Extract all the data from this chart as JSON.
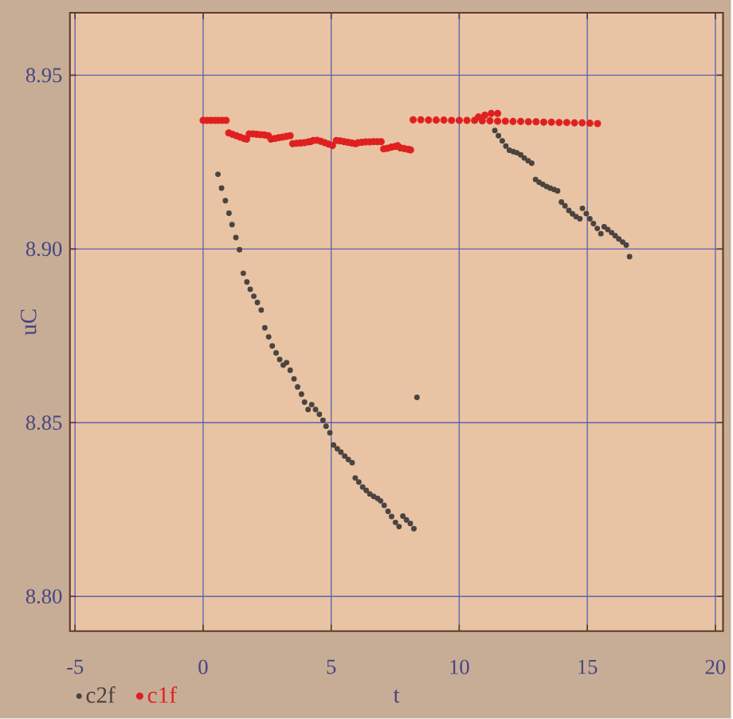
{
  "chart_data": {
    "type": "scatter",
    "xlabel": "t",
    "ylabel": "uC",
    "xlim": [
      -5.2,
      20.3
    ],
    "ylim": [
      8.79,
      8.968
    ],
    "xticks": [
      -5,
      0,
      5,
      10,
      15,
      20
    ],
    "yticks": [
      {
        "value": 8.8,
        "label": "8.80"
      },
      {
        "value": 8.85,
        "label": "8.85"
      },
      {
        "value": 8.9,
        "label": "8.90"
      },
      {
        "value": 8.95,
        "label": "8.95"
      }
    ],
    "grid": true,
    "legend": "bottom left",
    "marker": "circle",
    "series": [
      {
        "name": "c2f",
        "color": "#4a4440",
        "x": [
          0.58,
          0.72,
          0.87,
          1.01,
          1.13,
          1.28,
          1.42,
          1.57,
          1.71,
          1.84,
          1.98,
          2.12,
          2.27,
          2.41,
          2.56,
          2.7,
          2.85,
          2.99,
          3.13,
          3.26,
          3.4,
          3.55,
          3.69,
          3.84,
          3.96,
          4.1,
          4.24,
          4.39,
          4.54,
          4.68,
          4.8,
          4.95,
          5.09,
          5.24,
          5.38,
          5.53,
          5.67,
          5.82,
          5.94,
          6.08,
          6.23,
          6.37,
          6.51,
          6.66,
          6.81,
          6.93,
          7.07,
          7.22,
          7.36,
          7.51,
          7.65,
          7.8,
          7.94,
          8.09,
          8.23,
          8.35,
          11.39,
          11.53,
          11.68,
          11.82,
          11.96,
          12.11,
          12.25,
          12.4,
          12.54,
          12.69,
          12.83,
          12.98,
          13.12,
          13.26,
          13.41,
          13.55,
          13.7,
          13.84,
          13.99,
          14.13,
          14.28,
          14.42,
          14.56,
          14.71,
          14.81,
          14.96,
          15.1,
          15.24,
          15.39,
          15.53,
          15.66,
          15.8,
          15.95,
          16.09,
          16.23,
          16.38,
          16.52,
          16.65
        ],
        "values": [
          8.9215,
          8.9175,
          8.9139,
          8.9103,
          8.907,
          8.9033,
          8.8998,
          8.893,
          8.8905,
          8.8884,
          8.8864,
          8.8846,
          8.8824,
          8.8773,
          8.8747,
          8.8721,
          8.8701,
          8.8682,
          8.8666,
          8.8673,
          8.8651,
          8.8626,
          8.8603,
          8.8582,
          8.8559,
          8.8538,
          8.8552,
          8.8538,
          8.8524,
          8.8507,
          8.849,
          8.8471,
          8.8436,
          8.8425,
          8.8415,
          8.8404,
          8.8394,
          8.8385,
          8.8341,
          8.8329,
          8.8315,
          8.8305,
          8.8295,
          8.8288,
          8.8282,
          8.8275,
          8.8262,
          8.8245,
          8.823,
          8.8213,
          8.8201,
          8.8231,
          8.822,
          8.821,
          8.8195,
          8.8573,
          8.9341,
          8.9326,
          8.9311,
          8.9296,
          8.9284,
          8.928,
          8.9277,
          8.9271,
          8.9262,
          8.9254,
          8.9247,
          8.92,
          8.9192,
          8.9186,
          8.918,
          8.9175,
          8.9171,
          8.9167,
          8.9135,
          8.9124,
          8.9111,
          8.9101,
          8.9093,
          8.9087,
          8.9117,
          8.9102,
          8.9087,
          8.9073,
          8.9059,
          8.9044,
          8.9064,
          8.9056,
          8.9047,
          8.9038,
          8.9029,
          8.902,
          8.9011,
          8.8978
        ]
      },
      {
        "name": "c1f",
        "color": "#e02020",
        "x": [
          0,
          0.15,
          0.3,
          0.45,
          0.6,
          0.75,
          0.9,
          1.0,
          1.15,
          1.3,
          1.45,
          1.6,
          1.7,
          1.8,
          1.95,
          2.1,
          2.25,
          2.4,
          2.55,
          2.65,
          2.8,
          2.95,
          3.1,
          3.25,
          3.4,
          3.5,
          3.65,
          3.8,
          3.95,
          4.1,
          4.2,
          4.3,
          4.45,
          4.6,
          4.75,
          4.9,
          5.05,
          5.2,
          5.35,
          5.5,
          5.65,
          5.8,
          5.95,
          6.05,
          6.2,
          6.35,
          6.5,
          6.65,
          6.8,
          6.95,
          7.05,
          7.2,
          7.35,
          7.5,
          7.6,
          7.7,
          7.85,
          8.0,
          8.1,
          8.2,
          8.5,
          8.8,
          9.1,
          9.4,
          9.7,
          10.0,
          10.3,
          10.6,
          10.75,
          10.9,
          11.0,
          11.2,
          11.25,
          11.5,
          11.5,
          11.8,
          12.1,
          12.4,
          12.7,
          13.0,
          13.3,
          13.6,
          13.9,
          14.2,
          14.5,
          14.8,
          15.1,
          15.4
        ],
        "values": [
          8.937,
          8.937,
          8.937,
          8.937,
          8.937,
          8.937,
          8.937,
          8.9334,
          8.933,
          8.9326,
          8.9322,
          8.9318,
          8.9316,
          8.9331,
          8.9331,
          8.933,
          8.9329,
          8.9328,
          8.9326,
          8.9316,
          8.9318,
          8.932,
          8.9322,
          8.9324,
          8.9326,
          8.9303,
          8.9304,
          8.9305,
          8.9306,
          8.9308,
          8.9309,
          8.9312,
          8.9313,
          8.931,
          8.9306,
          8.9302,
          8.9298,
          8.9312,
          8.9311,
          8.9309,
          8.9307,
          8.9305,
          8.9303,
          8.9306,
          8.9307,
          8.9308,
          8.9308,
          8.9309,
          8.9309,
          8.9309,
          8.9288,
          8.929,
          8.9293,
          8.9295,
          8.9297,
          8.9291,
          8.9289,
          8.9287,
          8.9285,
          8.9372,
          8.9372,
          8.9371,
          8.9371,
          8.9371,
          8.937,
          8.937,
          8.937,
          8.937,
          8.938,
          8.9369,
          8.9385,
          8.9369,
          8.939,
          8.939,
          8.9368,
          8.9368,
          8.9367,
          8.9367,
          8.9366,
          8.9366,
          8.9365,
          8.9365,
          8.9364,
          8.9364,
          8.9363,
          8.9363,
          8.9362,
          8.9361
        ]
      }
    ]
  }
}
